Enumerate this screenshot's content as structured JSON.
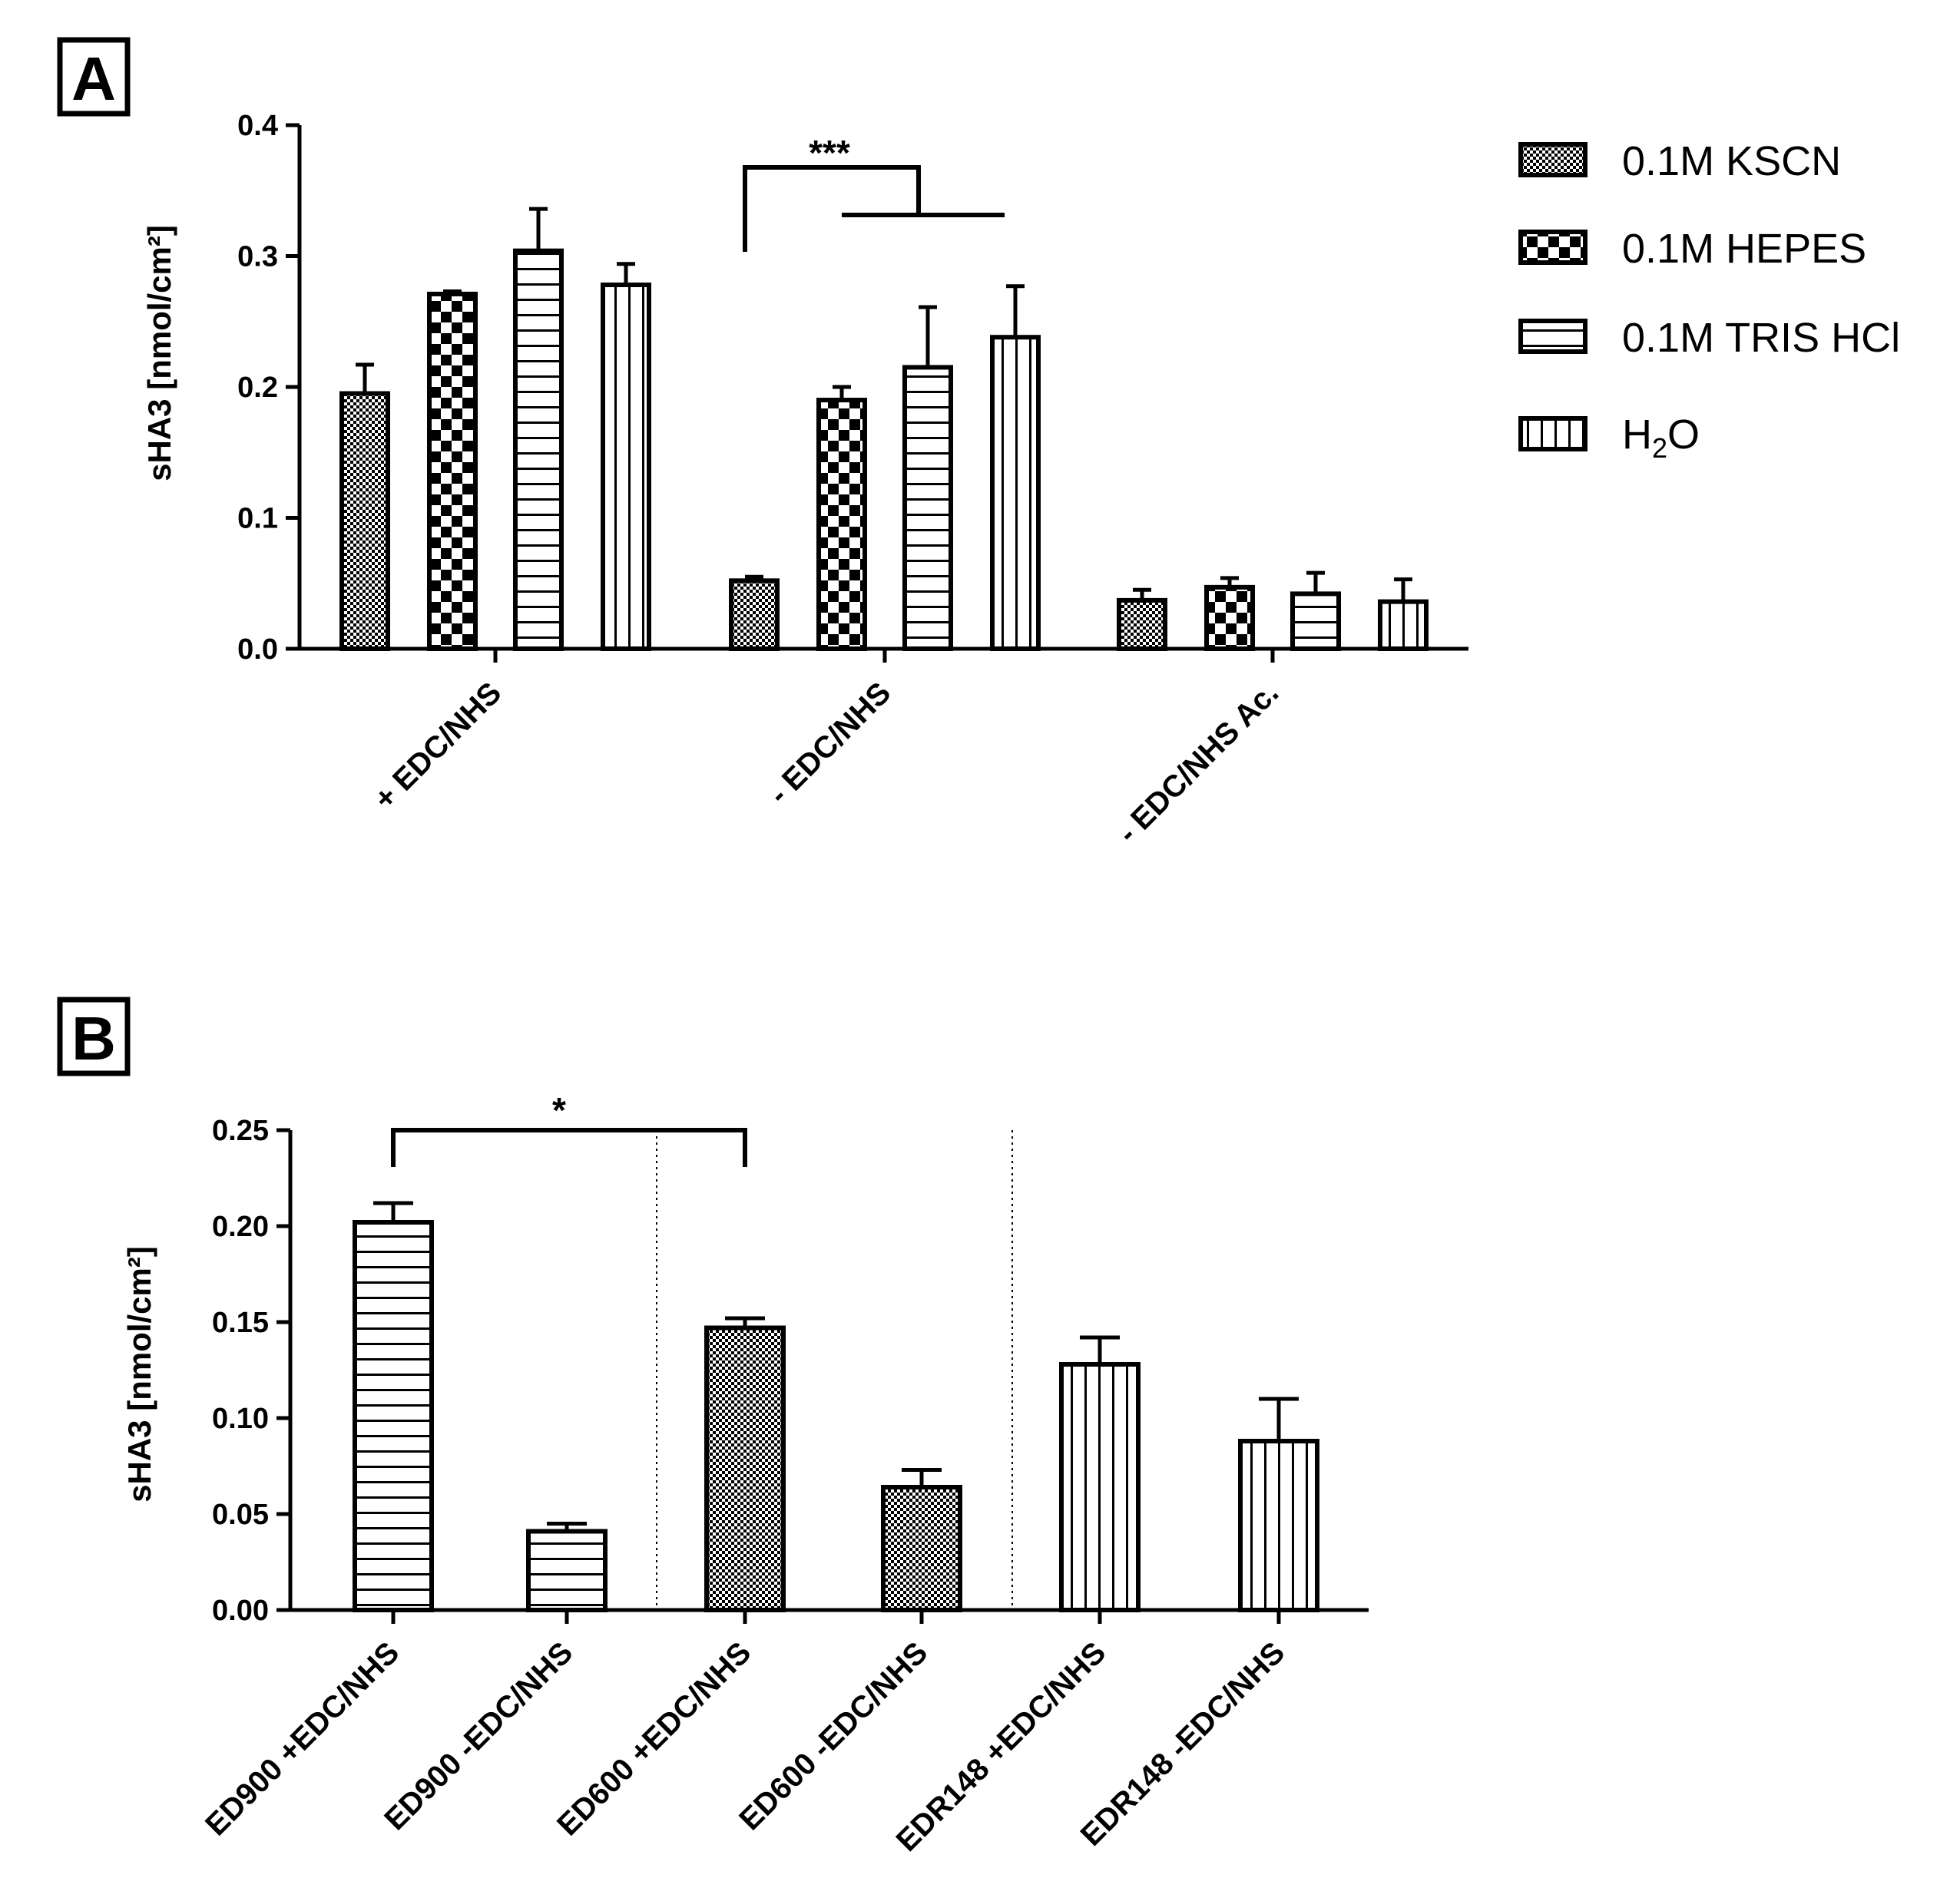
{
  "panelA": {
    "panel_label": "A",
    "chart_data": {
      "type": "bar",
      "title": "",
      "xlabel": "",
      "ylabel": "sHA3 [nmol/cm²]",
      "ylim": [
        0,
        0.4
      ],
      "yticks": [
        "0.0",
        "0.1",
        "0.2",
        "0.3",
        "0.4"
      ],
      "categories": [
        "+ EDC/NHS",
        "- EDC/NHS",
        "- EDC/NHS Ac."
      ],
      "legend_position": "top-right",
      "series": [
        {
          "name": "0.1M KSCN",
          "pattern": "fine-check",
          "values": [
            0.195,
            0.052,
            0.037
          ],
          "errors": [
            0.022,
            0.003,
            0.008
          ]
        },
        {
          "name": "0.1M HEPES",
          "pattern": "coarse-check",
          "values": [
            0.271,
            0.19,
            0.047
          ],
          "errors": [
            0.002,
            0.01,
            0.007
          ]
        },
        {
          "name": "0.1M TRIS HCl",
          "pattern": "horizontal",
          "values": [
            0.304,
            0.215,
            0.042
          ],
          "errors": [
            0.032,
            0.046,
            0.016
          ]
        },
        {
          "name": "H2O",
          "pattern": "vertical",
          "values": [
            0.278,
            0.238,
            0.036
          ],
          "errors": [
            0.016,
            0.039,
            0.017
          ]
        }
      ],
      "annotations": [
        {
          "text": "***"
        }
      ]
    }
  },
  "panelB": {
    "panel_label": "B",
    "chart_data": {
      "type": "bar",
      "title": "",
      "xlabel": "",
      "ylabel": "sHA3 [nmol/cm²]",
      "ylim": [
        0,
        0.25
      ],
      "yticks": [
        "0.00",
        "0.05",
        "0.10",
        "0.15",
        "0.20",
        "0.25"
      ],
      "categories": [
        "ED900 +EDC/NHS",
        "ED900 -EDC/NHS",
        "ED600 +EDC/NHS",
        "ED600 -EDC/NHS",
        "EDR148 +EDC/NHS",
        "EDR148 -EDC/NHS"
      ],
      "patterns": [
        "horizontal",
        "horizontal",
        "fine-check",
        "fine-check",
        "vertical",
        "vertical"
      ],
      "values": [
        0.202,
        0.041,
        0.147,
        0.064,
        0.128,
        0.088
      ],
      "errors": [
        0.01,
        0.004,
        0.005,
        0.009,
        0.014,
        0.022
      ],
      "annotations": [
        {
          "text": "*"
        }
      ]
    }
  },
  "legend": {
    "items": [
      {
        "label": "0.1M KSCN",
        "pattern": "fine-check"
      },
      {
        "label": "0.1M HEPES",
        "pattern": "coarse-check"
      },
      {
        "label": "0.1M TRIS HCl",
        "pattern": "horizontal"
      },
      {
        "label_main": "H",
        "label_sub": "2",
        "label_end": "O",
        "pattern": "vertical"
      }
    ]
  }
}
